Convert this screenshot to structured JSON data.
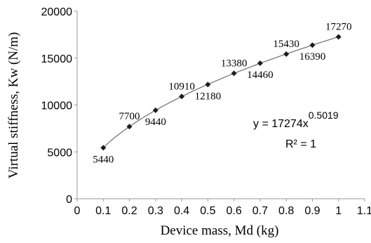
{
  "chart_data": {
    "type": "scatter",
    "title": "",
    "xlabel": "Device mass, Md (kg)",
    "ylabel": "Virtual stiffness, Kw (N/m)",
    "xlim": [
      0,
      1.1
    ],
    "ylim": [
      0,
      20000
    ],
    "x_ticks": [
      0,
      0.1,
      0.2,
      0.3,
      0.4,
      0.5,
      0.6,
      0.7,
      0.8,
      0.9,
      1,
      1.1
    ],
    "x_tick_labels": [
      "0",
      "0.1",
      "0.2",
      "0.3",
      "0.4",
      "0.5",
      "0.6",
      "0.7",
      "0.8",
      "0.9",
      "1",
      "1.1"
    ],
    "y_ticks": [
      0,
      5000,
      10000,
      15000,
      20000
    ],
    "y_tick_labels": [
      "0",
      "5000",
      "10000",
      "15000",
      "20000"
    ],
    "grid": false,
    "series": [
      {
        "x": [
          0.1,
          0.2,
          0.3,
          0.4,
          0.5,
          0.6,
          0.7,
          0.8,
          0.9,
          1.0
        ],
        "y": [
          5440,
          7700,
          9440,
          10910,
          12180,
          13380,
          14460,
          15430,
          16390,
          17270
        ],
        "labels": [
          "5440",
          "7700",
          "9440",
          "10910",
          "12180",
          "13380",
          "14460",
          "15430",
          "16390",
          "17270"
        ],
        "label_positions": [
          "below",
          "above",
          "below",
          "above",
          "below",
          "above",
          "below",
          "above",
          "below",
          "above"
        ],
        "marker": "diamond",
        "color": "#1a1a2e"
      }
    ],
    "trendline": {
      "type": "power",
      "a": 17274,
      "b": 0.5019,
      "color": "#777777",
      "equation_base": "y = 17274x",
      "equation_exponent": "0.5019",
      "r_squared_text": "R² = 1"
    }
  }
}
